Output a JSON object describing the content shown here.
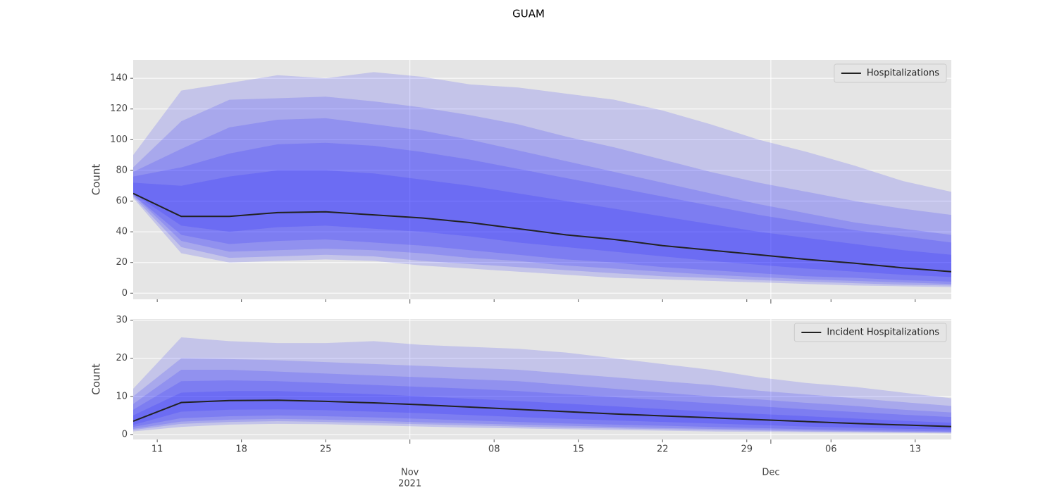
{
  "title": "GUAM",
  "chart_data": [
    {
      "type": "fan",
      "ylabel": "Count",
      "legend": "upper right",
      "grid": true,
      "band_color": "#1a1aff",
      "x": [
        "2021-10-09",
        "2021-10-13",
        "2021-10-17",
        "2021-10-21",
        "2021-10-25",
        "2021-10-29",
        "2021-11-02",
        "2021-11-06",
        "2021-11-10",
        "2021-11-14",
        "2021-11-18",
        "2021-11-22",
        "2021-11-26",
        "2021-11-30",
        "2021-12-04",
        "2021-12-08",
        "2021-12-12",
        "2021-12-16"
      ],
      "xlim": [
        "2021-10-09",
        "2021-12-16"
      ],
      "ylim": [
        -4,
        152
      ],
      "yticks": [
        0,
        20,
        40,
        60,
        80,
        100,
        120,
        140
      ],
      "series": [
        {
          "name": "Hospitalizations",
          "color": "#222222",
          "values": [
            65,
            50,
            50,
            52.5,
            53,
            51,
            49,
            46,
            42,
            38,
            35,
            31,
            28,
            25,
            22,
            19.5,
            16.5,
            14
          ]
        }
      ],
      "bands": [
        {
          "lower": [
            62,
            26,
            20,
            21,
            22,
            21,
            18,
            16,
            14,
            12,
            10,
            9,
            8,
            7,
            6,
            5,
            4.5,
            4
          ],
          "upper": [
            90,
            132,
            137,
            142,
            140,
            144,
            141,
            136,
            134,
            130,
            126,
            119,
            110,
            100,
            92,
            83,
            73,
            66
          ]
        },
        {
          "lower": [
            63,
            30,
            23,
            24,
            25,
            24,
            21,
            19,
            17,
            15,
            13,
            11,
            10,
            8.5,
            7.5,
            6.5,
            5.5,
            5
          ],
          "upper": [
            82,
            112,
            126,
            127,
            128,
            125,
            121,
            116,
            110,
            102,
            95,
            87,
            79,
            72,
            66,
            60,
            55,
            51
          ]
        },
        {
          "lower": [
            64,
            34,
            27,
            28,
            29,
            28,
            26,
            23,
            21,
            18,
            16,
            14,
            12,
            10.5,
            9,
            8,
            7,
            6
          ],
          "upper": [
            79,
            94,
            108,
            113,
            114,
            110,
            106,
            100,
            93,
            86,
            79,
            72,
            65,
            58,
            52,
            46,
            42,
            38
          ]
        },
        {
          "lower": [
            64,
            38,
            32,
            34,
            35,
            33,
            31,
            28,
            25,
            22,
            20,
            17,
            15,
            13,
            11,
            10,
            8.5,
            7.5
          ],
          "upper": [
            76,
            82,
            91,
            97,
            98,
            96,
            92,
            87,
            81,
            75,
            69,
            63,
            57,
            51,
            46,
            41,
            37,
            33
          ]
        },
        {
          "lower": [
            65,
            44,
            40,
            43,
            44,
            42,
            40,
            37,
            33,
            30,
            27,
            24,
            21,
            18.5,
            16,
            14,
            12,
            10.5
          ],
          "upper": [
            72,
            70,
            76,
            80,
            80,
            78,
            74,
            70,
            65,
            60,
            55,
            50,
            45,
            40,
            36,
            32,
            28,
            25
          ]
        }
      ]
    },
    {
      "type": "fan",
      "ylabel": "Count",
      "legend": "upper right",
      "grid": true,
      "band_color": "#1a1aff",
      "x": [
        "2021-10-09",
        "2021-10-13",
        "2021-10-17",
        "2021-10-21",
        "2021-10-25",
        "2021-10-29",
        "2021-11-02",
        "2021-11-06",
        "2021-11-10",
        "2021-11-14",
        "2021-11-18",
        "2021-11-22",
        "2021-11-26",
        "2021-11-30",
        "2021-12-04",
        "2021-12-08",
        "2021-12-12",
        "2021-12-16"
      ],
      "xlim": [
        "2021-10-09",
        "2021-12-16"
      ],
      "xticks": [
        {
          "value": "2021-10-11",
          "label": "11"
        },
        {
          "value": "2021-10-18",
          "label": "18"
        },
        {
          "value": "2021-10-25",
          "label": "25"
        },
        {
          "value": "2021-11-08",
          "label": "08"
        },
        {
          "value": "2021-11-15",
          "label": "15"
        },
        {
          "value": "2021-11-22",
          "label": "22"
        },
        {
          "value": "2021-11-29",
          "label": "29"
        },
        {
          "value": "2021-12-06",
          "label": "06"
        },
        {
          "value": "2021-12-13",
          "label": "13"
        }
      ],
      "xticks_month": [
        {
          "value": "2021-11-01",
          "label": "Nov",
          "year": "2021"
        },
        {
          "value": "2021-12-01",
          "label": "Dec"
        }
      ],
      "ylim": [
        -1.3,
        30.3
      ],
      "yticks": [
        0,
        10,
        20,
        30
      ],
      "series": [
        {
          "name": "Incident Hospitalizations",
          "color": "#222222",
          "values": [
            3.5,
            8.4,
            8.9,
            9.0,
            8.7,
            8.3,
            7.8,
            7.2,
            6.6,
            6.0,
            5.4,
            4.9,
            4.4,
            3.9,
            3.4,
            2.9,
            2.5,
            2.1
          ]
        }
      ],
      "bands": [
        {
          "lower": [
            0.8,
            2,
            2.6,
            2.8,
            2.7,
            2.4,
            2.1,
            1.8,
            1.6,
            1.4,
            1.2,
            1,
            0.8,
            0.7,
            0.6,
            0.5,
            0.4,
            0.3
          ],
          "upper": [
            12,
            25.5,
            24.5,
            24,
            24,
            24.5,
            23.5,
            23,
            22.5,
            21.5,
            20,
            18.5,
            17,
            15,
            13.5,
            12.5,
            11,
            9.5
          ]
        },
        {
          "lower": [
            1.2,
            2.8,
            3.3,
            3.5,
            3.3,
            3,
            2.7,
            2.4,
            2.1,
            1.8,
            1.6,
            1.4,
            1.2,
            1,
            0.8,
            0.7,
            0.6,
            0.5
          ],
          "upper": [
            10,
            20,
            19.8,
            19.5,
            19,
            18.5,
            18,
            17.5,
            17,
            16,
            15,
            14,
            13,
            11.5,
            10.5,
            9.5,
            8.5,
            7.5
          ]
        },
        {
          "lower": [
            1.5,
            3.4,
            3.9,
            4.1,
            3.9,
            3.6,
            3.2,
            2.9,
            2.6,
            2.3,
            2,
            1.7,
            1.5,
            1.3,
            1.1,
            0.9,
            0.7,
            0.6
          ],
          "upper": [
            8,
            17,
            17,
            16.5,
            16,
            15.5,
            15,
            14.5,
            14,
            13,
            12,
            11,
            10,
            9.2,
            8.3,
            7.5,
            6.5,
            5.8
          ]
        },
        {
          "lower": [
            2,
            4.3,
            4.8,
            5,
            4.8,
            4.5,
            4.1,
            3.7,
            3.3,
            2.9,
            2.6,
            2.3,
            2,
            1.7,
            1.4,
            1.2,
            1,
            0.8
          ],
          "upper": [
            6.5,
            14,
            14.2,
            14,
            13.5,
            13,
            12.5,
            12,
            11.4,
            10.6,
            9.8,
            9,
            8.2,
            7.4,
            6.6,
            5.9,
            5.2,
            4.6
          ]
        },
        {
          "lower": [
            2.5,
            6,
            6.5,
            6.6,
            6.4,
            6,
            5.6,
            5.1,
            4.6,
            4.1,
            3.7,
            3.3,
            2.9,
            2.5,
            2.1,
            1.8,
            1.5,
            1.3
          ],
          "upper": [
            5,
            11,
            11.4,
            11.4,
            11,
            10.6,
            10,
            9.4,
            8.8,
            8.1,
            7.4,
            6.7,
            6,
            5.4,
            4.8,
            4.2,
            3.6,
            3.1
          ]
        }
      ]
    }
  ]
}
